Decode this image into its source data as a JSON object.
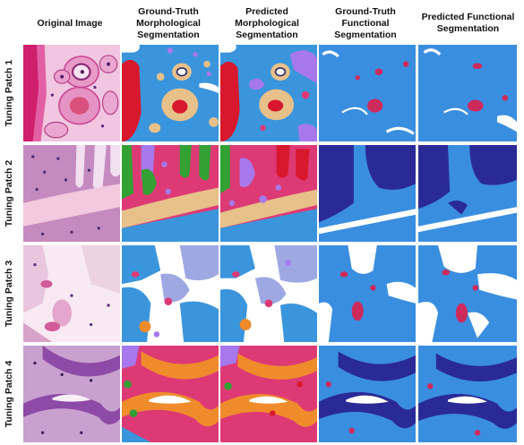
{
  "columns": [
    "Original Image",
    "Ground-Truth Morphological Segmentation",
    "Predicted Morphological Segmentation",
    "Ground-Truth Functional Segmentation",
    "Predicted Functional Segmentation"
  ],
  "rows": [
    "Tuning Patch 1",
    "Tuning Patch 2",
    "Tuning Patch 3",
    "Tuning Patch 4"
  ],
  "colors": {
    "tissue_pink": "#d5449a",
    "tissue_light": "#f1c6e0",
    "nuclei": "#6a2a88",
    "morph_blue": "#3a95dc",
    "morph_red": "#d8182d",
    "morph_green": "#33a033",
    "morph_magenta": "#dd3a75",
    "morph_tan": "#e7c08a",
    "morph_purple": "#a778ec",
    "morph_orange": "#f08b2c",
    "morph_lavender": "#9ea8e2",
    "func_blue": "#3a8ee0",
    "func_navy": "#2a2a96",
    "func_crimson": "#cc2b5c"
  }
}
